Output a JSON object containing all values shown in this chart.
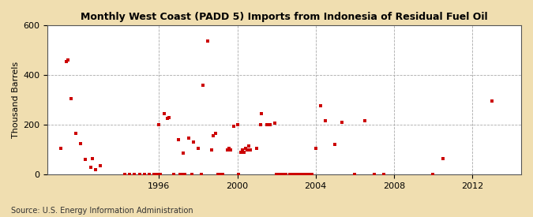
{
  "title": "Monthly West Coast (PADD 5) Imports from Indonesia of Residual Fuel Oil",
  "ylabel": "Thousand Barrels",
  "source": "Source: U.S. Energy Information Administration",
  "figure_bg_color": "#f0deb0",
  "plot_bg_color": "#ffffff",
  "marker_color": "#cc0000",
  "marker_size": 12,
  "ylim": [
    0,
    600
  ],
  "yticks": [
    0,
    200,
    400,
    600
  ],
  "xlim_start": 1990.3,
  "xlim_end": 2014.5,
  "xticks": [
    1996,
    2000,
    2004,
    2008,
    2012
  ],
  "data_points": [
    [
      1991.0,
      105
    ],
    [
      1991.25,
      455
    ],
    [
      1991.33,
      460
    ],
    [
      1991.5,
      305
    ],
    [
      1991.75,
      165
    ],
    [
      1992.0,
      125
    ],
    [
      1992.25,
      60
    ],
    [
      1992.5,
      30
    ],
    [
      1992.6,
      65
    ],
    [
      1992.75,
      20
    ],
    [
      1993.0,
      35
    ],
    [
      1994.25,
      0
    ],
    [
      1994.5,
      0
    ],
    [
      1994.75,
      0
    ],
    [
      1995.0,
      0
    ],
    [
      1995.25,
      0
    ],
    [
      1995.5,
      0
    ],
    [
      1995.75,
      0
    ],
    [
      1995.9,
      0
    ],
    [
      1996.0,
      200
    ],
    [
      1996.08,
      0
    ],
    [
      1996.25,
      245
    ],
    [
      1996.42,
      225
    ],
    [
      1996.5,
      230
    ],
    [
      1996.75,
      0
    ],
    [
      1997.0,
      140
    ],
    [
      1997.08,
      0
    ],
    [
      1997.17,
      0
    ],
    [
      1997.25,
      85
    ],
    [
      1997.33,
      0
    ],
    [
      1997.5,
      145
    ],
    [
      1997.67,
      0
    ],
    [
      1997.75,
      130
    ],
    [
      1998.0,
      105
    ],
    [
      1998.17,
      0
    ],
    [
      1998.25,
      360
    ],
    [
      1998.5,
      535
    ],
    [
      1998.67,
      100
    ],
    [
      1998.75,
      155
    ],
    [
      1998.9,
      165
    ],
    [
      1999.0,
      0
    ],
    [
      1999.08,
      0
    ],
    [
      1999.17,
      0
    ],
    [
      1999.25,
      0
    ],
    [
      1999.5,
      100
    ],
    [
      1999.58,
      105
    ],
    [
      1999.67,
      100
    ],
    [
      1999.83,
      195
    ],
    [
      2000.0,
      200
    ],
    [
      2000.08,
      0
    ],
    [
      2000.17,
      90
    ],
    [
      2000.25,
      100
    ],
    [
      2000.33,
      90
    ],
    [
      2000.42,
      105
    ],
    [
      2000.5,
      100
    ],
    [
      2000.58,
      115
    ],
    [
      2000.67,
      100
    ],
    [
      2001.0,
      105
    ],
    [
      2001.17,
      200
    ],
    [
      2001.25,
      245
    ],
    [
      2001.5,
      200
    ],
    [
      2001.67,
      200
    ],
    [
      2001.92,
      205
    ],
    [
      2002.0,
      0
    ],
    [
      2002.17,
      0
    ],
    [
      2002.33,
      0
    ],
    [
      2002.5,
      0
    ],
    [
      2002.67,
      0
    ],
    [
      2002.83,
      0
    ],
    [
      2003.0,
      0
    ],
    [
      2003.17,
      0
    ],
    [
      2003.33,
      0
    ],
    [
      2003.5,
      0
    ],
    [
      2003.67,
      0
    ],
    [
      2003.83,
      0
    ],
    [
      2004.0,
      105
    ],
    [
      2004.25,
      275
    ],
    [
      2004.5,
      215
    ],
    [
      2005.0,
      120
    ],
    [
      2005.33,
      210
    ],
    [
      2006.0,
      0
    ],
    [
      2006.5,
      215
    ],
    [
      2007.0,
      0
    ],
    [
      2007.5,
      0
    ],
    [
      2010.0,
      0
    ],
    [
      2010.5,
      65
    ],
    [
      2013.0,
      295
    ]
  ]
}
